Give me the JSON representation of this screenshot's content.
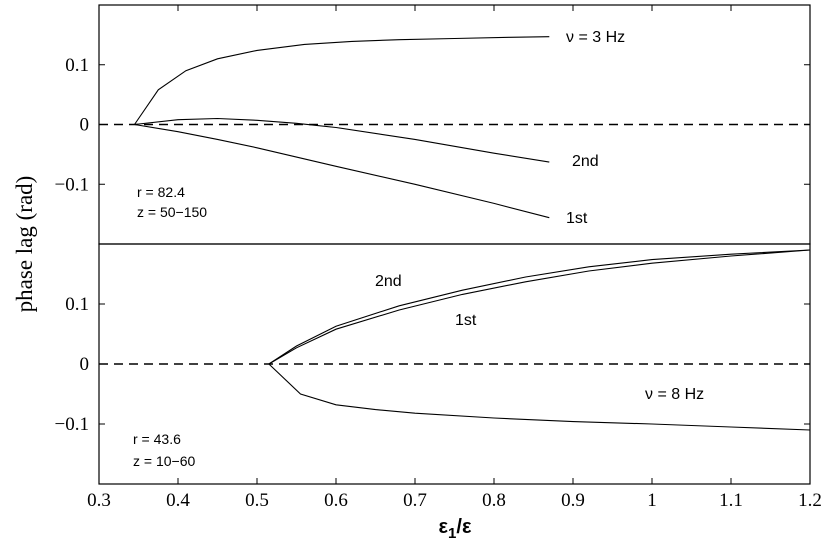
{
  "chart_data": [
    {
      "type": "line",
      "panel": "top",
      "xlim": [
        0.3,
        1.2
      ],
      "ylim": [
        -0.2,
        0.2
      ],
      "yticks": [
        -0.1,
        0,
        0.1
      ],
      "ytick_labels": [
        "−0.1",
        "0",
        "0.1"
      ],
      "reference_line": {
        "y": 0,
        "style": "dashed"
      },
      "series": [
        {
          "name": "ν = 3 Hz",
          "x": [
            0.345,
            0.375,
            0.41,
            0.45,
            0.5,
            0.56,
            0.62,
            0.68,
            0.75,
            0.82,
            0.87
          ],
          "y": [
            0.0,
            0.058,
            0.09,
            0.11,
            0.124,
            0.134,
            0.139,
            0.142,
            0.144,
            0.146,
            0.147
          ]
        },
        {
          "name": "2nd",
          "x": [
            0.345,
            0.4,
            0.45,
            0.5,
            0.55,
            0.6,
            0.7,
            0.8,
            0.87
          ],
          "y": [
            0.0,
            0.008,
            0.01,
            0.007,
            0.002,
            -0.005,
            -0.025,
            -0.048,
            -0.063
          ]
        },
        {
          "name": "1st",
          "x": [
            0.345,
            0.4,
            0.45,
            0.5,
            0.6,
            0.7,
            0.8,
            0.87
          ],
          "y": [
            0.0,
            -0.012,
            -0.025,
            -0.039,
            -0.07,
            -0.1,
            -0.132,
            -0.156
          ]
        }
      ],
      "labels": {
        "r": "r = 82.4",
        "z": "z = 50−150"
      }
    },
    {
      "type": "line",
      "panel": "bottom",
      "xlim": [
        0.3,
        1.2
      ],
      "ylim": [
        -0.2,
        0.2
      ],
      "xticks": [
        0.3,
        0.4,
        0.5,
        0.6,
        0.7,
        0.8,
        0.9,
        1,
        1.1,
        1.2
      ],
      "xtick_labels": [
        "0.3",
        "0.4",
        "0.5",
        "0.6",
        "0.7",
        "0.8",
        "0.9",
        "1",
        "1.1",
        "1.2"
      ],
      "yticks": [
        -0.1,
        0,
        0.1
      ],
      "ytick_labels": [
        "−0.1",
        "0",
        "0.1"
      ],
      "reference_line": {
        "y": 0,
        "style": "dashed"
      },
      "series": [
        {
          "name": "2nd",
          "x": [
            0.515,
            0.55,
            0.6,
            0.68,
            0.76,
            0.84,
            0.92,
            1.0,
            1.1,
            1.2
          ],
          "y": [
            0.0,
            0.03,
            0.063,
            0.097,
            0.123,
            0.145,
            0.162,
            0.174,
            0.183,
            0.19
          ]
        },
        {
          "name": "1st",
          "x": [
            0.515,
            0.55,
            0.6,
            0.68,
            0.76,
            0.84,
            0.92,
            1.0,
            1.1,
            1.2
          ],
          "y": [
            0.0,
            0.027,
            0.058,
            0.09,
            0.116,
            0.137,
            0.155,
            0.168,
            0.18,
            0.19
          ]
        },
        {
          "name": "ν = 8 Hz",
          "x": [
            0.515,
            0.555,
            0.6,
            0.65,
            0.7,
            0.8,
            0.9,
            1.0,
            1.1,
            1.2
          ],
          "y": [
            0.0,
            -0.05,
            -0.068,
            -0.076,
            -0.082,
            -0.09,
            -0.096,
            -0.1,
            -0.105,
            -0.11
          ]
        }
      ],
      "labels": {
        "r": "r = 43.6",
        "z": "z = 10−60"
      }
    }
  ],
  "ylabel": "phase lag (rad)",
  "xlabel": {
    "eps": "ε",
    "sub": "1",
    "tail": "/ε"
  },
  "series_labels": {
    "top_nu": "ν = 3 Hz",
    "top_2nd": "2nd",
    "top_1st": "1st",
    "bottom_2nd": "2nd",
    "bottom_1st": "1st",
    "bottom_nu": "ν = 8 Hz"
  }
}
